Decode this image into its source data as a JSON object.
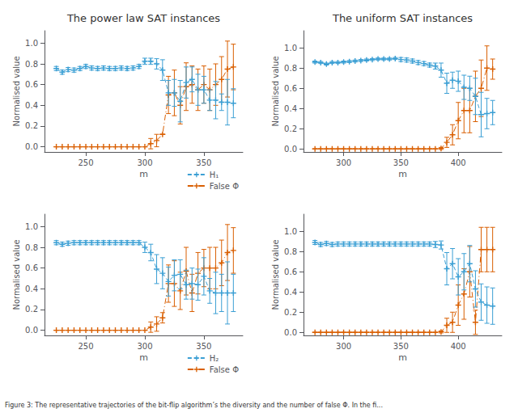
{
  "chart_data": [
    {
      "type": "line",
      "title": "The power law SAT instances",
      "xlabel": "m",
      "ylabel": "Normalised value",
      "annotations": [
        "Figure 3: The representative trajectories of the bit-flip algorithm’s the diversity and the number of false Φ. In the fi..."
      ],
      "x": [
        225,
        230,
        235,
        240,
        245,
        250,
        255,
        260,
        265,
        270,
        275,
        280,
        285,
        290,
        295,
        300,
        305,
        310,
        315,
        320,
        325,
        330,
        335,
        340,
        345,
        350,
        355,
        360,
        365,
        370,
        375
      ],
      "series": [
        {
          "name": "H₁",
          "color": "#3B9FD4",
          "marker": "plus",
          "line_style": "dashed",
          "values": [
            0.755,
            0.72,
            0.745,
            0.74,
            0.755,
            0.775,
            0.76,
            0.755,
            0.76,
            0.755,
            0.755,
            0.76,
            0.755,
            0.76,
            0.775,
            0.825,
            0.825,
            0.8,
            0.74,
            0.52,
            0.52,
            0.44,
            0.62,
            0.65,
            0.55,
            0.55,
            0.45,
            0.45,
            0.43,
            0.43,
            0.42
          ],
          "yerr": [
            0.02,
            0.02,
            0.02,
            0.02,
            0.02,
            0.02,
            0.02,
            0.02,
            0.02,
            0.02,
            0.02,
            0.02,
            0.02,
            0.02,
            0.02,
            0.03,
            0.03,
            0.05,
            0.1,
            0.12,
            0.13,
            0.2,
            0.15,
            0.12,
            0.15,
            0.13,
            0.1,
            0.18,
            0.08,
            0.22,
            0.14
          ]
        },
        {
          "name": "False Φ",
          "color": "#D95F02",
          "marker": "plus",
          "line_style": "dashdot",
          "values": [
            0.0,
            0.0,
            0.0,
            0.0,
            0.0,
            0.0,
            0.0,
            0.0,
            0.0,
            0.0,
            0.0,
            0.0,
            0.0,
            0.0,
            0.0,
            0.0,
            0.03,
            0.06,
            0.12,
            0.5,
            0.52,
            0.4,
            0.58,
            0.6,
            0.55,
            0.6,
            0.55,
            0.6,
            0.65,
            0.75,
            0.77
          ],
          "yerr": [
            0.0,
            0.0,
            0.0,
            0.0,
            0.0,
            0.0,
            0.0,
            0.0,
            0.0,
            0.0,
            0.0,
            0.0,
            0.0,
            0.0,
            0.0,
            0.0,
            0.05,
            0.06,
            0.0,
            0.18,
            0.22,
            0.18,
            0.23,
            0.18,
            0.2,
            0.18,
            0.2,
            0.2,
            0.22,
            0.27,
            0.22
          ]
        }
      ],
      "xlim": [
        215,
        383
      ],
      "ylim": [
        -0.05,
        1.12
      ],
      "xticks": [
        250,
        300,
        350
      ],
      "yticks": [
        {
          "value": 0,
          "label": "0.0"
        },
        0.2,
        0.4,
        0.6,
        0.8,
        {
          "value": 1,
          "label": "1.0"
        }
      ],
      "grid": false,
      "legend": "lower right"
    },
    {
      "type": "line",
      "title": "The uniform SAT instances",
      "xlabel": "m",
      "ylabel": "Normalised value",
      "x": [
        275,
        280,
        285,
        290,
        295,
        300,
        305,
        310,
        315,
        320,
        325,
        330,
        335,
        340,
        345,
        350,
        355,
        360,
        365,
        370,
        375,
        380,
        385,
        390,
        395,
        400,
        405,
        410,
        415,
        420,
        425,
        430
      ],
      "series": [
        {
          "name": "H₁",
          "color": "#3B9FD4",
          "marker": "plus",
          "line_style": "dashed",
          "values": [
            0.86,
            0.855,
            0.84,
            0.855,
            0.855,
            0.86,
            0.865,
            0.87,
            0.875,
            0.88,
            0.885,
            0.89,
            0.89,
            0.89,
            0.895,
            0.885,
            0.88,
            0.87,
            0.855,
            0.845,
            0.83,
            0.82,
            0.78,
            0.65,
            0.68,
            0.67,
            0.61,
            0.6,
            0.52,
            0.34,
            0.35,
            0.36
          ],
          "yerr": [
            0.01,
            0.01,
            0.01,
            0.01,
            0.01,
            0.01,
            0.01,
            0.01,
            0.01,
            0.01,
            0.01,
            0.01,
            0.01,
            0.01,
            0.01,
            0.02,
            0.02,
            0.02,
            0.02,
            0.02,
            0.02,
            0.03,
            0.07,
            0.1,
            0.08,
            0.1,
            0.12,
            0.12,
            0.18,
            0.22,
            0.15,
            0.12
          ]
        },
        {
          "name": "False Φ",
          "color": "#D95F02",
          "marker": "plus",
          "line_style": "dashdot",
          "values": [
            0.0,
            0.0,
            0.0,
            0.0,
            0.0,
            0.0,
            0.0,
            0.0,
            0.0,
            0.0,
            0.0,
            0.0,
            0.0,
            0.0,
            0.0,
            0.0,
            0.0,
            0.0,
            0.0,
            0.0,
            0.0,
            0.0,
            0.005,
            0.065,
            0.14,
            0.28,
            0.38,
            0.38,
            0.52,
            0.6,
            0.8,
            0.79
          ],
          "yerr": [
            0.0,
            0.0,
            0.0,
            0.0,
            0.0,
            0.0,
            0.0,
            0.0,
            0.0,
            0.0,
            0.0,
            0.0,
            0.0,
            0.0,
            0.0,
            0.0,
            0.0,
            0.0,
            0.0,
            0.0,
            0.0,
            0.0,
            0.01,
            0.05,
            0.1,
            0.18,
            0.22,
            0.22,
            0.25,
            0.28,
            0.22,
            0.1
          ]
        }
      ],
      "xlim": [
        265,
        438
      ],
      "ylim": [
        -0.03,
        1.17
      ],
      "xticks": [
        300,
        350,
        400
      ],
      "yticks": [
        {
          "value": 0,
          "label": "0.0"
        },
        0.2,
        0.4,
        0.6,
        0.8,
        {
          "value": 1,
          "label": "1.0"
        }
      ],
      "grid": false,
      "legend": false
    },
    {
      "type": "line",
      "xlabel": "m",
      "ylabel": "Normalised value",
      "x": [
        225,
        230,
        235,
        240,
        245,
        250,
        255,
        260,
        265,
        270,
        275,
        280,
        285,
        290,
        295,
        300,
        305,
        310,
        315,
        320,
        325,
        330,
        335,
        340,
        345,
        350,
        355,
        360,
        365,
        370,
        375
      ],
      "series": [
        {
          "name": "H₂",
          "color": "#3B9FD4",
          "marker": "plus",
          "line_style": "dashed",
          "values": [
            0.845,
            0.83,
            0.84,
            0.845,
            0.845,
            0.845,
            0.845,
            0.845,
            0.845,
            0.845,
            0.845,
            0.845,
            0.845,
            0.845,
            0.845,
            0.8,
            0.75,
            0.59,
            0.55,
            0.47,
            0.53,
            0.54,
            0.44,
            0.45,
            0.44,
            0.52,
            0.38,
            0.36,
            0.36,
            0.36,
            0.36
          ],
          "yerr": [
            0.02,
            0.02,
            0.02,
            0.02,
            0.02,
            0.02,
            0.02,
            0.02,
            0.02,
            0.02,
            0.02,
            0.02,
            0.02,
            0.02,
            0.02,
            0.05,
            0.08,
            0.14,
            0.15,
            0.14,
            0.15,
            0.14,
            0.14,
            0.15,
            0.15,
            0.18,
            0.12,
            0.2,
            0.18,
            0.3,
            0.18
          ]
        },
        {
          "name": "False Φ",
          "color": "#D95F02",
          "marker": "plus",
          "line_style": "dashdot",
          "values": [
            0.0,
            0.0,
            0.0,
            0.0,
            0.0,
            0.0,
            0.0,
            0.0,
            0.0,
            0.0,
            0.0,
            0.0,
            0.0,
            0.0,
            0.0,
            0.0,
            0.03,
            0.06,
            0.12,
            0.45,
            0.45,
            0.38,
            0.57,
            0.36,
            0.55,
            0.6,
            0.6,
            0.6,
            0.65,
            0.75,
            0.77
          ],
          "yerr": [
            0.0,
            0.0,
            0.0,
            0.0,
            0.0,
            0.0,
            0.0,
            0.0,
            0.0,
            0.0,
            0.0,
            0.0,
            0.0,
            0.0,
            0.0,
            0.0,
            0.05,
            0.07,
            0.05,
            0.18,
            0.22,
            0.18,
            0.23,
            0.18,
            0.2,
            0.18,
            0.2,
            0.2,
            0.22,
            0.27,
            0.22
          ]
        }
      ],
      "xlim": [
        215,
        383
      ],
      "ylim": [
        -0.05,
        1.12
      ],
      "xticks": [
        250,
        300,
        350
      ],
      "yticks": [
        {
          "value": 0,
          "label": "0.0"
        },
        0.2,
        0.4,
        0.6,
        0.8,
        {
          "value": 1,
          "label": "1.0"
        }
      ],
      "grid": false,
      "legend": "lower right"
    },
    {
      "type": "line",
      "xlabel": "m",
      "ylabel": "Normalised value",
      "x": [
        275,
        280,
        285,
        290,
        295,
        300,
        305,
        310,
        315,
        320,
        325,
        330,
        335,
        340,
        345,
        350,
        355,
        360,
        365,
        370,
        375,
        380,
        385,
        390,
        395,
        400,
        405,
        410,
        415,
        420,
        425,
        430
      ],
      "series": [
        {
          "name": "H₂",
          "color": "#3B9FD4",
          "marker": "plus",
          "line_style": "dashed",
          "values": [
            0.89,
            0.87,
            0.88,
            0.87,
            0.875,
            0.875,
            0.875,
            0.875,
            0.875,
            0.875,
            0.875,
            0.875,
            0.875,
            0.875,
            0.875,
            0.875,
            0.875,
            0.875,
            0.875,
            0.875,
            0.875,
            0.87,
            0.865,
            0.63,
            0.68,
            0.55,
            0.6,
            0.68,
            0.43,
            0.3,
            0.27,
            0.26
          ],
          "yerr": [
            0.02,
            0.02,
            0.02,
            0.02,
            0.02,
            0.02,
            0.02,
            0.02,
            0.02,
            0.02,
            0.02,
            0.02,
            0.02,
            0.02,
            0.02,
            0.02,
            0.02,
            0.02,
            0.02,
            0.02,
            0.02,
            0.03,
            0.04,
            0.16,
            0.15,
            0.18,
            0.18,
            0.18,
            0.18,
            0.18,
            0.18,
            0.18
          ]
        },
        {
          "name": "False Φ",
          "color": "#D95F02",
          "marker": "plus",
          "line_style": "dashdot",
          "values": [
            0.0,
            0.0,
            0.0,
            0.0,
            0.0,
            0.0,
            0.0,
            0.0,
            0.0,
            0.0,
            0.0,
            0.0,
            0.0,
            0.0,
            0.0,
            0.0,
            0.0,
            0.0,
            0.0,
            0.0,
            0.0,
            0.0,
            0.005,
            0.07,
            0.1,
            0.27,
            0.38,
            0.6,
            0.1,
            0.82,
            0.82,
            0.82
          ],
          "yerr": [
            0.0,
            0.0,
            0.0,
            0.0,
            0.0,
            0.0,
            0.0,
            0.0,
            0.0,
            0.0,
            0.0,
            0.0,
            0.0,
            0.0,
            0.0,
            0.0,
            0.0,
            0.0,
            0.0,
            0.0,
            0.0,
            0.0,
            0.01,
            0.07,
            0.1,
            0.2,
            0.25,
            0.25,
            0.12,
            0.22,
            0.22,
            0.22
          ]
        }
      ],
      "xlim": [
        265,
        438
      ],
      "ylim": [
        -0.03,
        1.17
      ],
      "xticks": [
        300,
        350,
        400
      ],
      "yticks": [
        {
          "value": 0,
          "label": "0.0"
        },
        0.2,
        0.4,
        0.6,
        0.8,
        {
          "value": 1,
          "label": "1.0"
        }
      ],
      "grid": false,
      "legend": false
    }
  ]
}
